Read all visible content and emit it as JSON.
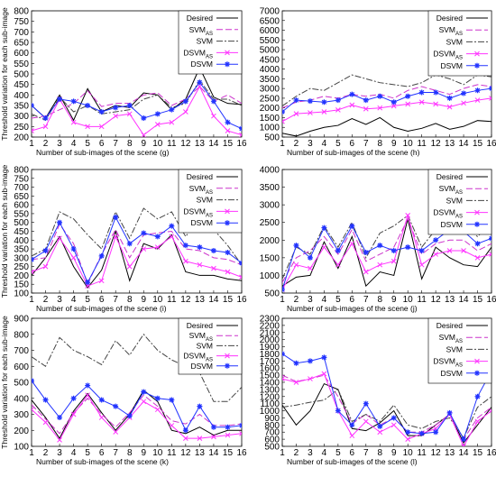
{
  "figure": {
    "background": "#ffffff"
  },
  "series_styles": [
    {
      "key": "desired",
      "color": "#000000",
      "dash": "",
      "marker": "none"
    },
    {
      "key": "svm_as",
      "color": "#cc33cc",
      "dash": "7 3",
      "marker": "none"
    },
    {
      "key": "svm",
      "color": "#444444",
      "dash": "7 2 2 2",
      "marker": "none"
    },
    {
      "key": "dsvm_as",
      "color": "#ff33ff",
      "dash": "",
      "marker": "x"
    },
    {
      "key": "dsvm",
      "color": "#2233ff",
      "dash": "",
      "marker": "star"
    }
  ],
  "legend_labels": {
    "desired": {
      "main": "Desired",
      "sub": ""
    },
    "svm_as": {
      "main": "SVM",
      "sub": "AS"
    },
    "svm": {
      "main": "SVM",
      "sub": ""
    },
    "dsvm_as": {
      "main": "DSVM",
      "sub": "AS"
    },
    "dsvm": {
      "main": "DSVM",
      "sub": ""
    }
  },
  "chart_data": [
    {
      "type": "line",
      "panel": "g",
      "xlabel": "Number of sub-images of the scene (g)",
      "ylabel": "Threshold variation for each sub-image",
      "xlim": [
        1,
        16
      ],
      "ylim": [
        200,
        800
      ],
      "yticks": [
        200,
        250,
        300,
        350,
        400,
        450,
        500,
        550,
        600,
        650,
        700,
        750,
        800
      ],
      "x": [
        1,
        2,
        3,
        4,
        5,
        6,
        7,
        8,
        9,
        10,
        11,
        12,
        13,
        14,
        15,
        16
      ],
      "series": [
        {
          "key": "desired",
          "values": [
            350,
            290,
            400,
            280,
            430,
            320,
            350,
            340,
            410,
            400,
            330,
            380,
            530,
            390,
            360,
            355
          ]
        },
        {
          "key": "svm_as",
          "values": [
            290,
            300,
            330,
            360,
            420,
            345,
            360,
            360,
            400,
            410,
            350,
            380,
            440,
            370,
            400,
            360
          ]
        },
        {
          "key": "svm",
          "values": [
            310,
            280,
            390,
            320,
            350,
            310,
            320,
            330,
            380,
            400,
            340,
            360,
            470,
            380,
            380,
            350
          ]
        },
        {
          "key": "dsvm_as",
          "values": [
            230,
            250,
            380,
            270,
            250,
            250,
            300,
            310,
            210,
            260,
            270,
            320,
            440,
            300,
            230,
            210
          ]
        },
        {
          "key": "dsvm",
          "values": [
            350,
            290,
            380,
            370,
            350,
            320,
            340,
            350,
            290,
            310,
            330,
            370,
            460,
            370,
            270,
            240
          ]
        }
      ]
    },
    {
      "type": "line",
      "panel": "h",
      "xlabel": "Number of sub-images of the scene (h)",
      "ylabel": "",
      "xlim": [
        1,
        16
      ],
      "ylim": [
        500,
        7000
      ],
      "yticks": [
        500,
        1000,
        1500,
        2000,
        2500,
        3000,
        3500,
        4000,
        4500,
        5000,
        5500,
        6000,
        6500,
        7000
      ],
      "x": [
        1,
        2,
        3,
        4,
        5,
        6,
        7,
        8,
        9,
        10,
        11,
        12,
        13,
        14,
        15,
        16
      ],
      "series": [
        {
          "key": "desired",
          "values": [
            700,
            550,
            800,
            1000,
            1100,
            1450,
            1150,
            1500,
            1000,
            800,
            950,
            1200,
            900,
            1050,
            1350,
            1300
          ]
        },
        {
          "key": "svm_as",
          "values": [
            2000,
            2300,
            2400,
            2600,
            2500,
            2700,
            2600,
            2700,
            2500,
            2900,
            3100,
            2900,
            2700,
            3000,
            3200,
            3100
          ]
        },
        {
          "key": "svm",
          "values": [
            2100,
            2600,
            3000,
            2900,
            3300,
            3700,
            3500,
            3300,
            3200,
            3100,
            3300,
            3700,
            3500,
            3200,
            3700,
            3600
          ]
        },
        {
          "key": "dsvm_as",
          "values": [
            1300,
            1700,
            1750,
            1800,
            1900,
            2150,
            1950,
            2000,
            2100,
            2200,
            2300,
            2200,
            2050,
            2250,
            2400,
            2500
          ]
        },
        {
          "key": "dsvm",
          "values": [
            1800,
            2400,
            2350,
            2300,
            2400,
            2700,
            2400,
            2600,
            2300,
            2600,
            2800,
            2800,
            2500,
            2750,
            2900,
            3000
          ]
        }
      ]
    },
    {
      "type": "line",
      "panel": "i",
      "xlabel": "Number of sub-images of the scene (i)",
      "ylabel": "Threshold variation for each sub-image",
      "xlim": [
        1,
        16
      ],
      "ylim": [
        100,
        800
      ],
      "yticks": [
        100,
        150,
        200,
        250,
        300,
        350,
        400,
        450,
        500,
        550,
        600,
        650,
        700,
        750,
        800
      ],
      "x": [
        1,
        2,
        3,
        4,
        5,
        6,
        7,
        8,
        9,
        10,
        11,
        12,
        13,
        14,
        15,
        16
      ],
      "series": [
        {
          "key": "desired",
          "values": [
            200,
            300,
            420,
            250,
            130,
            230,
            450,
            170,
            380,
            350,
            430,
            220,
            200,
            200,
            180,
            170
          ]
        },
        {
          "key": "svm_as",
          "values": [
            290,
            300,
            490,
            380,
            150,
            320,
            460,
            300,
            430,
            440,
            450,
            350,
            340,
            300,
            290,
            260
          ]
        },
        {
          "key": "svm",
          "values": [
            310,
            350,
            560,
            520,
            430,
            350,
            560,
            410,
            580,
            520,
            560,
            420,
            530,
            460,
            370,
            260
          ]
        },
        {
          "key": "dsvm_as",
          "values": [
            220,
            250,
            410,
            300,
            140,
            170,
            420,
            250,
            350,
            360,
            420,
            280,
            260,
            240,
            220,
            190
          ]
        },
        {
          "key": "dsvm",
          "values": [
            290,
            340,
            500,
            350,
            160,
            310,
            530,
            380,
            440,
            420,
            480,
            370,
            360,
            340,
            330,
            270
          ]
        }
      ]
    },
    {
      "type": "line",
      "panel": "j",
      "xlabel": "Number of sub-images of the scene (j)",
      "ylabel": "",
      "xlim": [
        1,
        16
      ],
      "ylim": [
        500,
        4000
      ],
      "yticks": [
        500,
        1000,
        1500,
        2000,
        2500,
        3000,
        3500,
        4000
      ],
      "x": [
        1,
        2,
        3,
        4,
        5,
        6,
        7,
        8,
        9,
        10,
        11,
        12,
        13,
        14,
        15,
        16
      ],
      "series": [
        {
          "key": "desired",
          "values": [
            700,
            950,
            1000,
            1950,
            1200,
            2100,
            700,
            1100,
            1000,
            2600,
            900,
            1800,
            1500,
            1300,
            1250,
            1800
          ]
        },
        {
          "key": "svm_as",
          "values": [
            800,
            1500,
            1700,
            2100,
            1600,
            2300,
            1400,
            1600,
            1800,
            2600,
            1600,
            1900,
            2000,
            2000,
            1700,
            1900
          ]
        },
        {
          "key": "svm",
          "values": [
            900,
            1800,
            1600,
            2400,
            1800,
            2500,
            1500,
            2200,
            2400,
            2700,
            1800,
            2300,
            2300,
            2400,
            2100,
            2500
          ]
        },
        {
          "key": "dsvm_as",
          "values": [
            600,
            1300,
            1200,
            1800,
            1300,
            1900,
            1100,
            1300,
            1400,
            2700,
            1300,
            1600,
            1700,
            1700,
            1500,
            1600
          ]
        },
        {
          "key": "dsvm",
          "values": [
            600,
            1850,
            1500,
            2350,
            1700,
            2400,
            1650,
            1850,
            1700,
            1800,
            1700,
            2000,
            2300,
            2250,
            1900,
            2050
          ]
        }
      ]
    },
    {
      "type": "line",
      "panel": "k",
      "xlabel": "Number of sub-images of the scene (k)",
      "ylabel": "Threshold variation for each sub-image",
      "xlim": [
        1,
        16
      ],
      "ylim": [
        100,
        900
      ],
      "yticks": [
        100,
        200,
        300,
        400,
        500,
        600,
        700,
        800,
        900
      ],
      "x": [
        1,
        2,
        3,
        4,
        5,
        6,
        7,
        8,
        9,
        10,
        11,
        12,
        13,
        14,
        15,
        16
      ],
      "series": [
        {
          "key": "desired",
          "values": [
            390,
            280,
            150,
            320,
            430,
            310,
            200,
            300,
            450,
            380,
            200,
            180,
            220,
            170,
            200,
            200
          ]
        },
        {
          "key": "svm_as",
          "values": [
            360,
            270,
            180,
            310,
            400,
            300,
            220,
            310,
            420,
            350,
            260,
            240,
            300,
            230,
            230,
            240
          ]
        },
        {
          "key": "svm",
          "values": [
            660,
            600,
            780,
            700,
            660,
            610,
            760,
            670,
            800,
            700,
            640,
            600,
            560,
            380,
            380,
            470
          ]
        },
        {
          "key": "dsvm_as",
          "values": [
            330,
            250,
            140,
            300,
            420,
            280,
            190,
            280,
            380,
            330,
            230,
            150,
            150,
            160,
            170,
            180
          ]
        },
        {
          "key": "dsvm",
          "values": [
            510,
            390,
            280,
            400,
            480,
            390,
            350,
            290,
            440,
            400,
            390,
            200,
            350,
            220,
            220,
            230
          ]
        }
      ]
    },
    {
      "type": "line",
      "panel": "l",
      "xlabel": "Number of sub-images of the scene (l)",
      "ylabel": "",
      "xlim": [
        1,
        16
      ],
      "ylim": [
        500,
        2300
      ],
      "yticks": [
        500,
        600,
        700,
        800,
        900,
        1000,
        1100,
        1200,
        1300,
        1400,
        1500,
        1600,
        1700,
        1800,
        1900,
        2000,
        2100,
        2200,
        2300
      ],
      "x": [
        1,
        2,
        3,
        4,
        5,
        6,
        7,
        8,
        9,
        10,
        11,
        12,
        13,
        14,
        15,
        16
      ],
      "series": [
        {
          "key": "desired",
          "values": [
            1080,
            800,
            1000,
            1380,
            1300,
            750,
            720,
            830,
            1000,
            650,
            650,
            800,
            950,
            550,
            800,
            1050
          ]
        },
        {
          "key": "svm_as",
          "values": [
            1500,
            1410,
            1450,
            1500,
            1200,
            820,
            950,
            800,
            900,
            700,
            700,
            800,
            950,
            600,
            900,
            1050
          ]
        },
        {
          "key": "svm",
          "values": [
            1050,
            1080,
            1120,
            1150,
            1300,
            850,
            950,
            850,
            1080,
            800,
            750,
            850,
            900,
            620,
            1050,
            1200
          ]
        },
        {
          "key": "dsvm_as",
          "values": [
            1450,
            1400,
            1450,
            1520,
            1000,
            650,
            850,
            700,
            800,
            600,
            680,
            750,
            950,
            500,
            850,
            1000
          ]
        },
        {
          "key": "dsvm",
          "values": [
            1800,
            1670,
            1700,
            1750,
            1000,
            800,
            1100,
            780,
            900,
            700,
            680,
            700,
            970,
            600,
            1200,
            1560
          ]
        }
      ]
    }
  ]
}
